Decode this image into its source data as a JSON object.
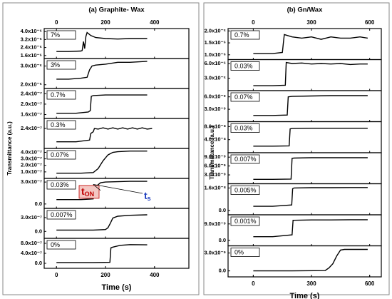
{
  "chart_data": [
    {
      "type": "line",
      "title": "(a) Graphite- Wax",
      "xlabel": "Time (s)",
      "ylabel": "Transmittance (a.u.)",
      "xlim": [
        -50,
        540
      ],
      "xticks": [
        0,
        200,
        400
      ],
      "color": "#000000",
      "panels": [
        {
          "label": "7%",
          "ylim": [
            1.3e-06,
            4.3e-06
          ],
          "yticks": [
            {
              "value": 1.6e-06,
              "label": "1.6x10⁻⁶"
            },
            {
              "value": 2.4e-06,
              "label": "2.4x10⁻⁶"
            },
            {
              "value": 3.2e-06,
              "label": "3.2x10⁻⁶"
            },
            {
              "value": 4e-06,
              "label": "4.0x10⁻⁶"
            }
          ],
          "x": [
            0,
            50,
            100,
            105,
            110,
            115,
            120,
            125,
            140,
            160,
            200,
            250,
            300,
            370
          ],
          "values": [
            2e-06,
            2e-06,
            2.05e-06,
            2.1e-06,
            3e-06,
            2.3e-06,
            3.5e-06,
            3.9e-06,
            3.6e-06,
            3.4e-06,
            3.3e-06,
            3.25e-06,
            3.3e-06,
            3.3e-06
          ]
        },
        {
          "label": "3%",
          "ylim": [
            1.8e-06,
            3.4e-06
          ],
          "yticks": [
            {
              "value": 2e-06,
              "label": "2.0x10⁻⁶"
            },
            {
              "value": 3e-06,
              "label": "3.0x10⁻⁶"
            }
          ],
          "x": [
            0,
            50,
            100,
            125,
            135,
            145,
            160,
            200,
            250,
            300,
            370
          ],
          "values": [
            2.3e-06,
            2.3e-06,
            2.35e-06,
            2.4e-06,
            2.8e-06,
            3e-06,
            3.05e-06,
            3.1e-06,
            3.2e-06,
            3.2e-06,
            3.25e-06
          ]
        },
        {
          "label": "0.7%",
          "ylim": [
            1.45e-07,
            2.6e-07
          ],
          "yticks": [
            {
              "value": 1.6e-07,
              "label": "1.6x10⁻⁷"
            },
            {
              "value": 2e-07,
              "label": "2.0x10⁻⁷"
            },
            {
              "value": 2.4e-07,
              "label": "2.4x10⁻⁷"
            }
          ],
          "x": [
            0,
            80,
            130,
            138,
            142,
            150,
            200,
            300,
            370
          ],
          "values": [
            1.65e-07,
            1.65e-07,
            1.7e-07,
            1.75e-07,
            2.3e-07,
            2.33e-07,
            2.35e-07,
            2.35e-07,
            2.35e-07
          ]
        },
        {
          "label": "0.3%",
          "ylim": [
            1.8e-07,
            2.7e-07
          ],
          "yticks": [
            {
              "value": 2.4e-07,
              "label": "2.4x10⁻⁷"
            }
          ],
          "x": [
            0,
            80,
            135,
            140,
            150,
            155,
            170,
            190,
            210,
            230,
            250,
            270,
            290,
            310,
            330,
            350,
            370,
            390
          ],
          "values": [
            2e-07,
            2e-07,
            2.05e-07,
            2.25e-07,
            2.3e-07,
            2.4e-07,
            2.38e-07,
            2.42e-07,
            2.38e-07,
            2.42e-07,
            2.38e-07,
            2.42e-07,
            2.38e-07,
            2.42e-07,
            2.38e-07,
            2.42e-07,
            2.38e-07,
            2.4e-07
          ]
        },
        {
          "label": "0.07%",
          "ylim": [
            0,
            4.6e-07
          ],
          "yticks": [
            {
              "value": 1e-07,
              "label": "1.0x10⁻⁷"
            },
            {
              "value": 2e-07,
              "label": "2.0x10⁻⁷"
            },
            {
              "value": 3e-07,
              "label": "3.0x10⁻⁷"
            },
            {
              "value": 4e-07,
              "label": "4.0x10⁻⁷"
            }
          ],
          "x": [
            0,
            100,
            150,
            170,
            190,
            210,
            230,
            250,
            300,
            370
          ],
          "values": [
            8e-08,
            8e-08,
            9e-08,
            1.5e-07,
            2.7e-07,
            3.6e-07,
            4e-07,
            4.1e-07,
            4.2e-07,
            4.2e-07
          ]
        },
        {
          "label": "0.03%",
          "ylim": [
            -6e-08,
            3.5e-07
          ],
          "yticks": [
            {
              "value": 0,
              "label": "0.0"
            },
            {
              "value": 3e-07,
              "label": "3.0x10⁻⁷"
            }
          ],
          "x": [
            0,
            100,
            150,
            155,
            165,
            180,
            200,
            250,
            300,
            370
          ],
          "values": [
            6e-08,
            6e-08,
            7e-08,
            1.5e-07,
            2.5e-07,
            2.9e-07,
            3e-07,
            3.05e-07,
            3.1e-07,
            3.1e-07
          ],
          "annotations": [
            {
              "text": "t",
              "subscript": "ON",
              "color": "#c00000"
            },
            {
              "text": "t",
              "subscript": "s",
              "color": "#1f3fbf"
            }
          ]
        },
        {
          "label": "0.007%",
          "ylim": [
            -1.5e-07,
            5e-07
          ],
          "yticks": [
            {
              "value": 0,
              "label": "0.0"
            },
            {
              "value": 3e-07,
              "label": "3.0x10⁻⁷"
            }
          ],
          "x": [
            0,
            150,
            200,
            210,
            220,
            230,
            250,
            300,
            370
          ],
          "values": [
            3e-08,
            3e-08,
            4e-08,
            8e-08,
            1.8e-07,
            2.9e-07,
            3.3e-07,
            3.5e-07,
            3.6e-07
          ]
        },
        {
          "label": "0%",
          "ylim": [
            -2e-07,
            1e-06
          ],
          "yticks": [
            {
              "value": 0,
              "label": "0.0"
            },
            {
              "value": 4e-07,
              "label": "4.0x10⁻⁷"
            },
            {
              "value": 8e-07,
              "label": "8.0x10⁻⁷"
            }
          ],
          "x": [
            0,
            150,
            218,
            222,
            230,
            260,
            300,
            370
          ],
          "values": [
            3e-08,
            3e-08,
            4e-08,
            6.2e-07,
            6.5e-07,
            7.2e-07,
            7.5e-07,
            7.4e-07
          ]
        }
      ]
    },
    {
      "type": "line",
      "title": "(b) Gn/Wax",
      "xlabel": "Time (s)",
      "ylabel": "Transmittance (a.u.)",
      "xlim": [
        -130,
        660
      ],
      "xticks": [
        0,
        300,
        600
      ],
      "color": "#000000",
      "panels": [
        {
          "label": "0.7%",
          "ylim": [
            8e-07,
            2.1e-06
          ],
          "yticks": [
            {
              "value": 1e-06,
              "label": "1.0x10⁻⁶"
            },
            {
              "value": 1.5e-06,
              "label": "1.5x10⁻⁶"
            },
            {
              "value": 2e-06,
              "label": "2.0x10⁻⁶"
            }
          ],
          "x": [
            0,
            100,
            150,
            155,
            160,
            200,
            250,
            300,
            350,
            400,
            450,
            500,
            550,
            590
          ],
          "values": [
            1.05e-06,
            1.05e-06,
            1.1e-06,
            1.5e-06,
            1.85e-06,
            1.75e-06,
            1.7e-06,
            1.75e-06,
            1.65e-06,
            1.75e-06,
            1.7e-06,
            1.7e-06,
            1.75e-06,
            1.7e-06
          ]
        },
        {
          "label": "0.03%",
          "ylim": [
            5e-07,
            6.8e-06
          ],
          "yticks": [
            {
              "value": 3e-06,
              "label": "3.0x10⁻⁶"
            },
            {
              "value": 6e-06,
              "label": "6.0x10⁻⁶"
            }
          ],
          "x": [
            0,
            100,
            165,
            170,
            200,
            250,
            300,
            350,
            400,
            450,
            500,
            550,
            590
          ],
          "values": [
            1.5e-06,
            1.5e-06,
            1.6e-06,
            6.2e-06,
            6e-06,
            6.1e-06,
            5.9e-06,
            6e-06,
            5.9e-06,
            6e-06,
            5.8e-06,
            5.9e-06,
            5.9e-06
          ]
        },
        {
          "label": "0.07%",
          "ylim": [
            0,
            7.5e-09
          ],
          "yticks": [
            {
              "value": 3e-09,
              "label": "3.0x10⁻⁹"
            },
            {
              "value": 6e-09,
              "label": "6.0x10⁻⁹"
            }
          ],
          "x": [
            0,
            100,
            175,
            180,
            200,
            300,
            400,
            500,
            590
          ],
          "values": [
            1.5e-09,
            1.5e-09,
            1.6e-09,
            6e-09,
            6.1e-09,
            6.2e-09,
            6.3e-09,
            6.3e-09,
            6.3e-09
          ]
        },
        {
          "label": "0.03%",
          "ylim": [
            0,
            9.5e-08
          ],
          "yticks": [
            {
              "value": 4e-08,
              "label": "4.0x10⁻⁸"
            },
            {
              "value": 8e-08,
              "label": "8.0x10⁻⁸"
            }
          ],
          "x": [
            0,
            100,
            185,
            190,
            200,
            300,
            400,
            500,
            590
          ],
          "values": [
            2e-08,
            2e-08,
            2.1e-08,
            7.3e-08,
            7.4e-08,
            7.5e-08,
            7.5e-08,
            7.5e-08,
            7.5e-08
          ]
        },
        {
          "label": "0.007%",
          "ylim": [
            0,
            1.05e-08
          ],
          "yticks": [
            {
              "value": 3e-09,
              "label": "3.0x10⁻⁹"
            },
            {
              "value": 6e-09,
              "label": "6.0x10⁻⁹"
            },
            {
              "value": 9e-09,
              "label": "9.0x10⁻⁹"
            }
          ],
          "x": [
            0,
            100,
            195,
            200,
            210,
            300,
            400,
            500,
            590
          ],
          "values": [
            1.5e-09,
            1.5e-09,
            1.6e-09,
            8.6e-09,
            8.7e-09,
            8.8e-09,
            8.8e-09,
            8.8e-09,
            8.8e-09
          ]
        },
        {
          "label": "0.005%",
          "ylim": [
            -3e-09,
            1.9e-08
          ],
          "yticks": [
            {
              "value": 0,
              "label": "0.0"
            },
            {
              "value": 1.6e-08,
              "label": "1.6x10⁻⁸"
            }
          ],
          "x": [
            0,
            100,
            198,
            203,
            210,
            300,
            400,
            500,
            590
          ],
          "values": [
            3e-09,
            3e-09,
            4e-09,
            1.55e-08,
            1.6e-08,
            1.62e-08,
            1.62e-08,
            1.63e-08,
            1.63e-08
          ]
        },
        {
          "label": "0.001%",
          "ylim": [
            -3e-09,
            1.4e-08
          ],
          "yticks": [
            {
              "value": 0,
              "label": "0.0"
            },
            {
              "value": 9e-09,
              "label": "9.0x10⁻⁹"
            }
          ],
          "x": [
            0,
            100,
            200,
            205,
            210,
            300,
            400,
            500,
            590
          ],
          "values": [
            2e-09,
            2e-09,
            3e-09,
            1.1e-08,
            1.1e-08,
            1.12e-08,
            1.12e-08,
            1.13e-08,
            1.13e-08
          ]
        },
        {
          "label": "0%",
          "ylim": [
            -1e-09,
            4.2e-09
          ],
          "yticks": [
            {
              "value": 0,
              "label": "0.0"
            },
            {
              "value": 3e-09,
              "label": "3.0x10⁻⁹"
            }
          ],
          "x": [
            0,
            200,
            370,
            390,
            410,
            430,
            450,
            470,
            500,
            590
          ],
          "values": [
            0,
            0,
            5e-11,
            5e-10,
            1.2e-09,
            2.5e-09,
            3.5e-09,
            3.6e-09,
            3.6e-09,
            3.6e-09
          ]
        }
      ]
    }
  ]
}
